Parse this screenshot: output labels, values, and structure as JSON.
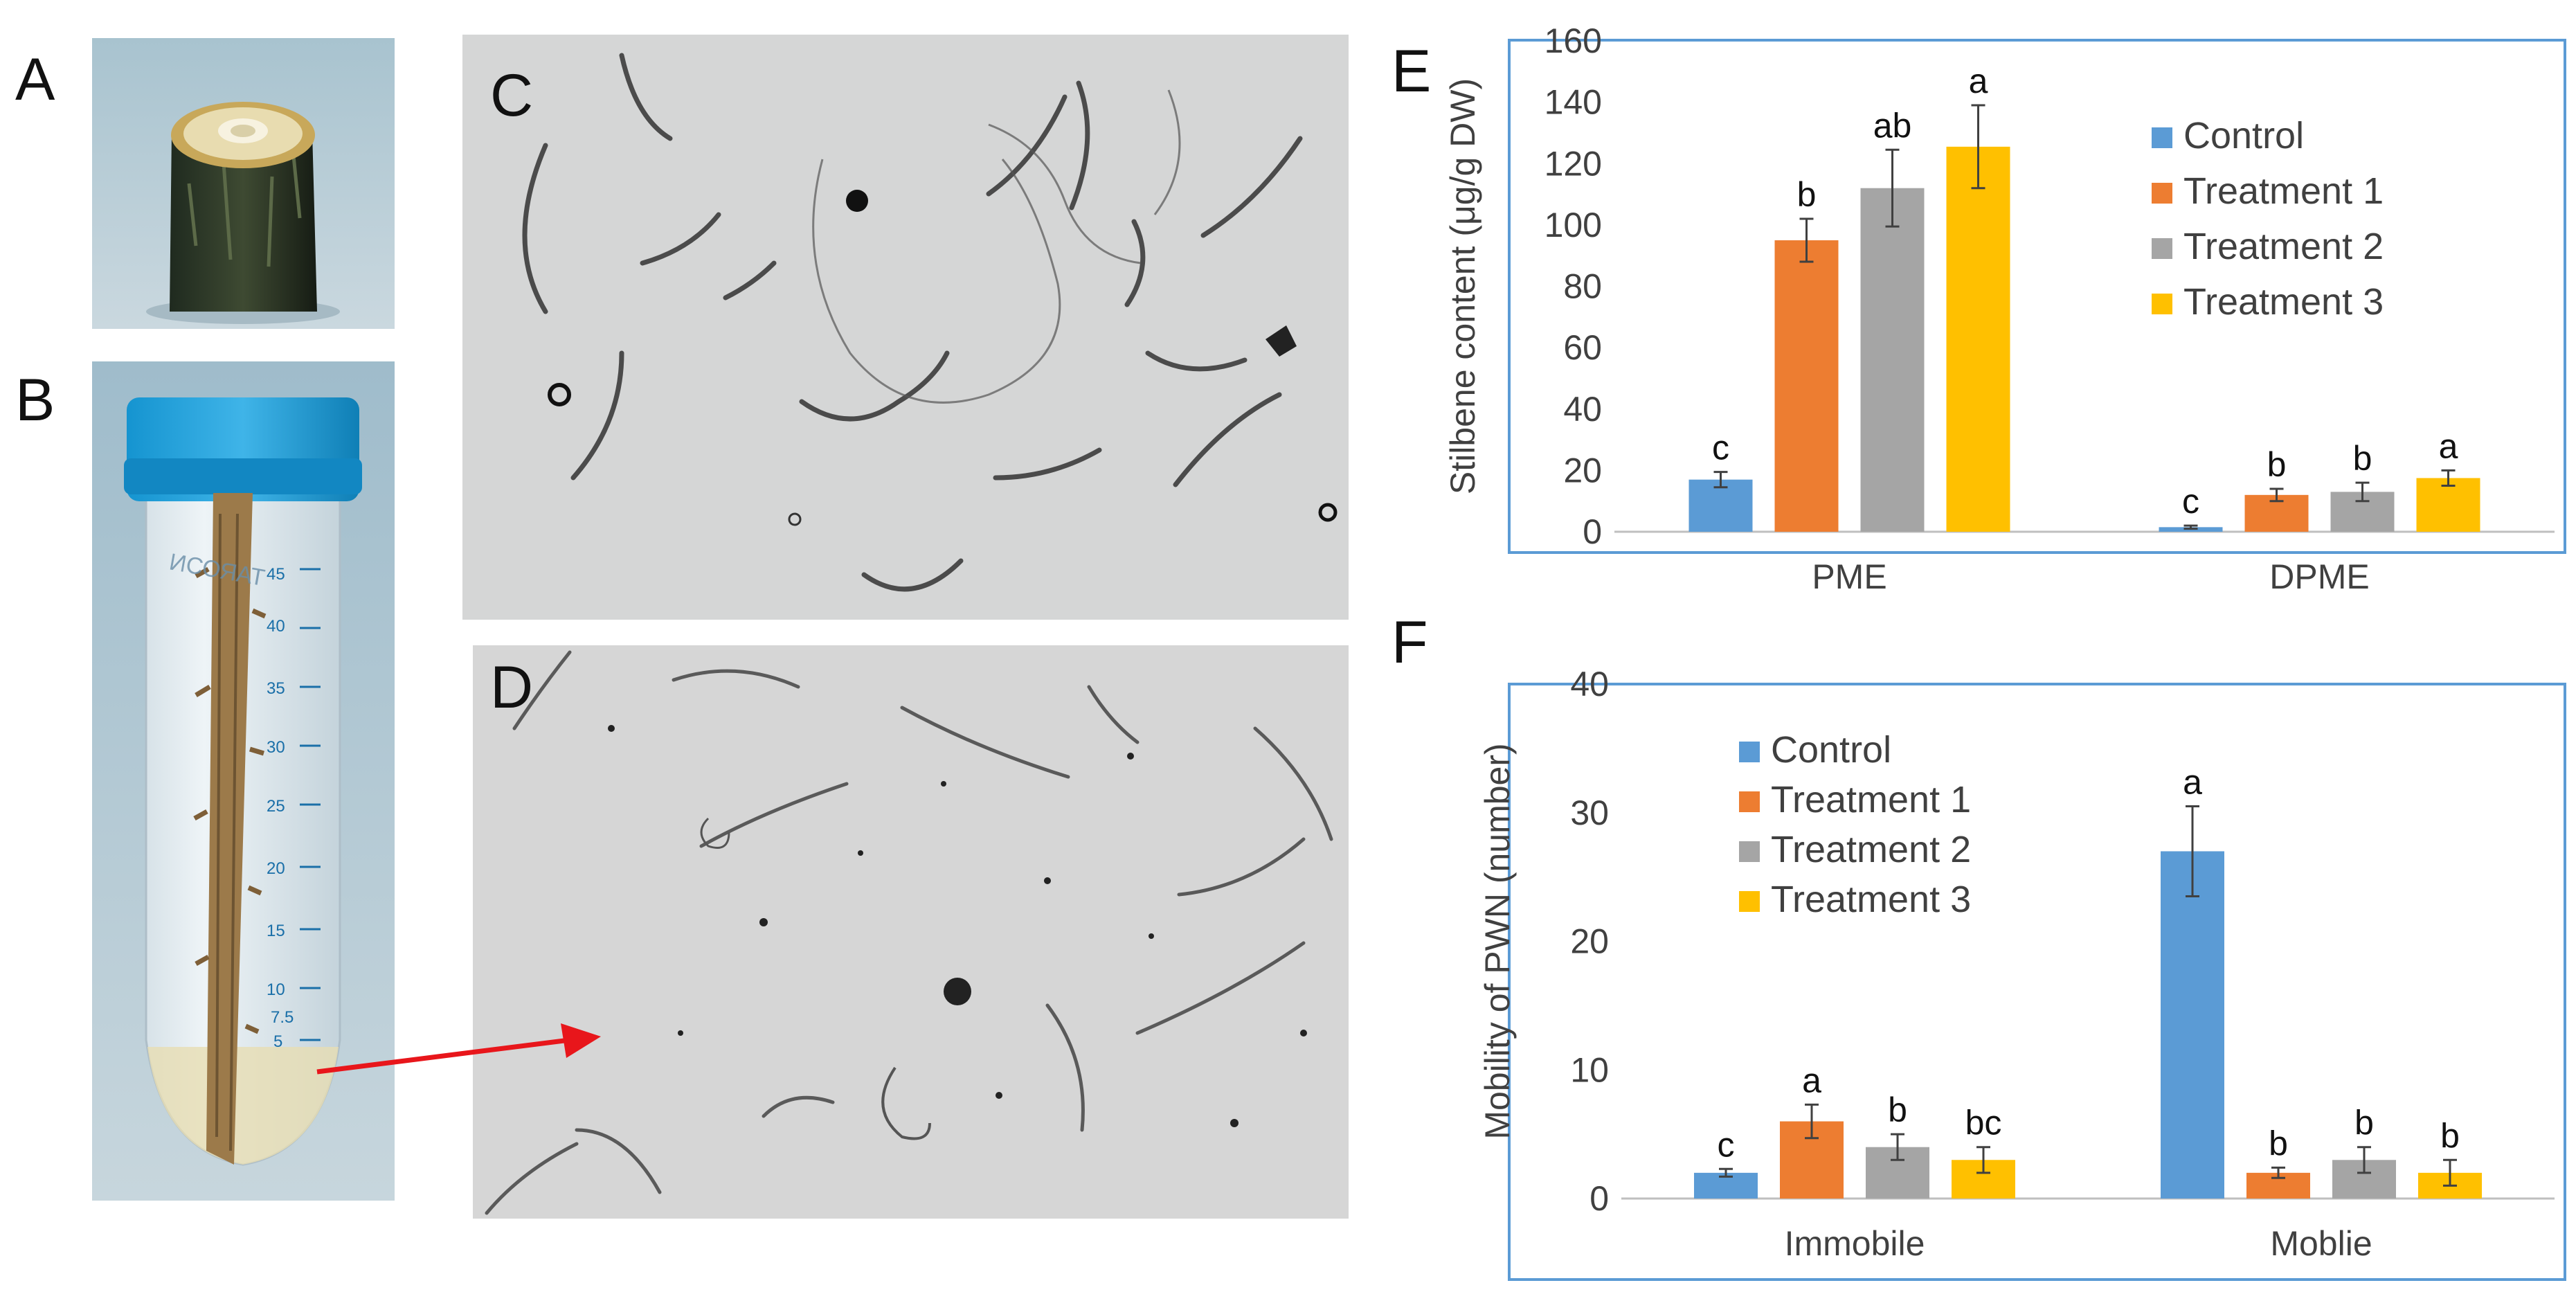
{
  "panels": {
    "a": "A",
    "b": "B",
    "c": "C",
    "d": "D",
    "e": "E",
    "f": "F"
  },
  "colors": {
    "control": "#5b9bd5",
    "treatment1": "#ed7d31",
    "treatment2": "#a5a5a5",
    "treatment3": "#ffc000",
    "frame": "#5b9bd5",
    "arrow": "#e8161b"
  },
  "tube_scale": [
    "45",
    "40",
    "35",
    "30",
    "25",
    "20",
    "15",
    "10",
    "7.5",
    "5"
  ],
  "tube_brand": "ИСОЯАТ",
  "chart_data": [
    {
      "type": "bar",
      "panel": "E",
      "ylabel": "Stilbene content (μg/g DW)",
      "xlabel": "",
      "ylim": [
        0,
        160
      ],
      "yticks": [
        "0",
        "20",
        "40",
        "60",
        "80",
        "100",
        "120",
        "140",
        "160"
      ],
      "grid": false,
      "legend_position": "top-right",
      "categories": [
        "PME",
        "DPME"
      ],
      "series": [
        {
          "name": "Control",
          "values": [
            17,
            1.5
          ],
          "errors": [
            2.5,
            0.5
          ],
          "letters": [
            "c",
            "c"
          ]
        },
        {
          "name": "Treatment 1",
          "values": [
            95,
            12
          ],
          "errors": [
            7,
            2
          ],
          "letters": [
            "b",
            "b"
          ]
        },
        {
          "name": "Treatment 2",
          "values": [
            112,
            13
          ],
          "errors": [
            12.5,
            3
          ],
          "letters": [
            "ab",
            "b"
          ]
        },
        {
          "name": "Treatment 3",
          "values": [
            125.5,
            17.5
          ],
          "errors": [
            13.5,
            2.5
          ],
          "letters": [
            "a",
            "a"
          ]
        }
      ]
    },
    {
      "type": "bar",
      "panel": "F",
      "ylabel": "Mobility of PWN (number)",
      "xlabel": "",
      "ylim": [
        0,
        40
      ],
      "yticks": [
        "0",
        "10",
        "20",
        "30",
        "40"
      ],
      "grid": false,
      "legend_position": "top-left",
      "categories": [
        "Immobile",
        "Moblie"
      ],
      "series": [
        {
          "name": "Control",
          "values": [
            2,
            27
          ],
          "errors": [
            0.3,
            3.5
          ],
          "letters": [
            "c",
            "a"
          ]
        },
        {
          "name": "Treatment 1",
          "values": [
            6,
            2
          ],
          "errors": [
            1.3,
            0.4
          ],
          "letters": [
            "a",
            "b"
          ]
        },
        {
          "name": "Treatment 2",
          "values": [
            4,
            3
          ],
          "errors": [
            1,
            1
          ],
          "letters": [
            "b",
            "b"
          ]
        },
        {
          "name": "Treatment 3",
          "values": [
            3,
            2
          ],
          "errors": [
            1,
            1
          ],
          "letters": [
            "bc",
            "b"
          ]
        }
      ]
    }
  ]
}
